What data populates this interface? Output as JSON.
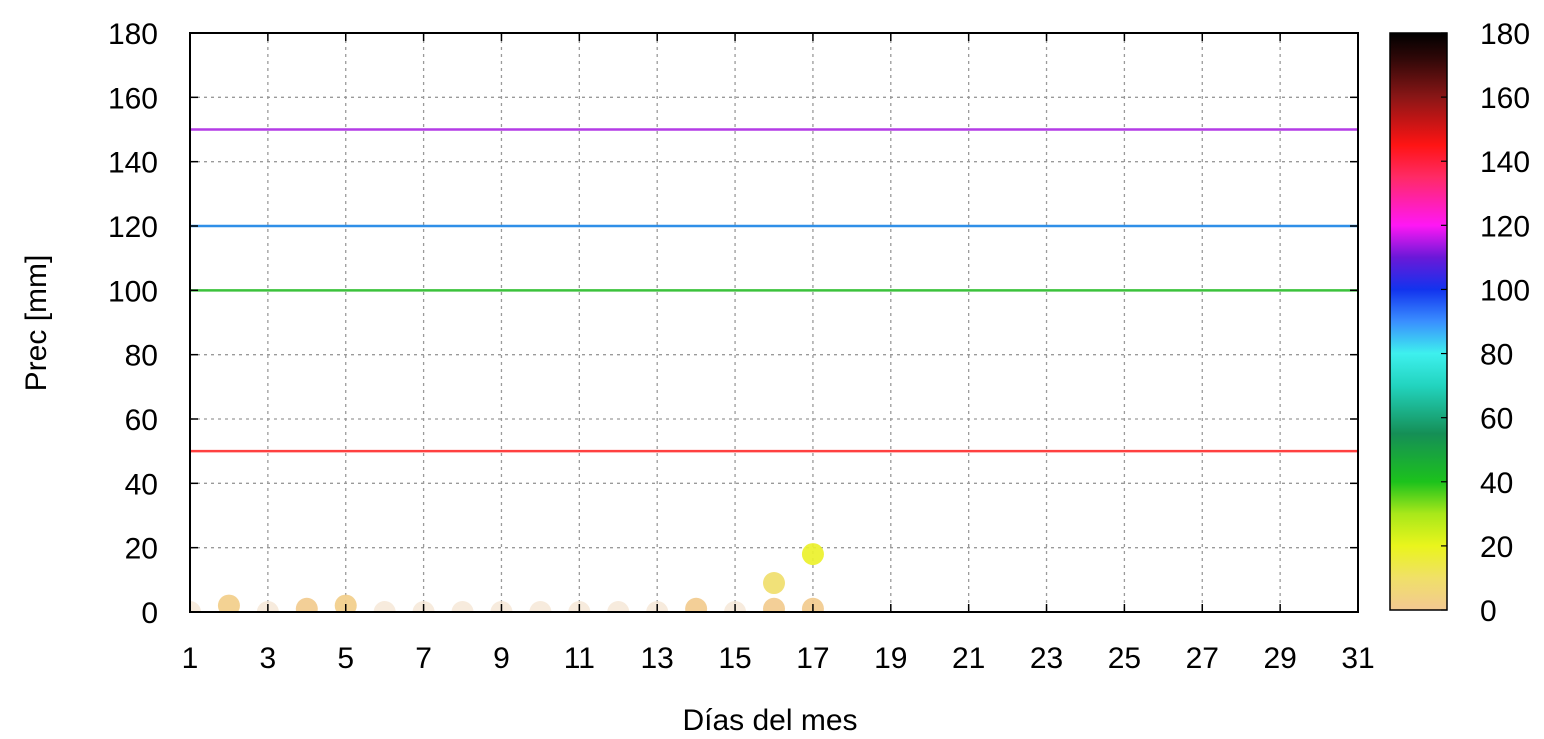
{
  "chart_data": {
    "type": "scatter",
    "xlabel": "Días del mes",
    "ylabel": "Prec [mm]",
    "xlim": [
      1,
      31
    ],
    "ylim": [
      0,
      180
    ],
    "x_ticks": [
      1,
      3,
      5,
      7,
      9,
      11,
      13,
      15,
      17,
      19,
      21,
      23,
      25,
      27,
      29,
      31
    ],
    "y_ticks": [
      0,
      20,
      40,
      60,
      80,
      100,
      120,
      140,
      160,
      180
    ],
    "grid": true,
    "thresholds": [
      {
        "value": 50,
        "color": "#ff4040"
      },
      {
        "value": 100,
        "color": "#3cc23c"
      },
      {
        "value": 120,
        "color": "#2f8fe8"
      },
      {
        "value": 150,
        "color": "#b43ce6"
      }
    ],
    "points": [
      {
        "x": 1,
        "y": 0
      },
      {
        "x": 2,
        "y": 2
      },
      {
        "x": 3,
        "y": 0
      },
      {
        "x": 4,
        "y": 1
      },
      {
        "x": 5,
        "y": 2
      },
      {
        "x": 6,
        "y": 0
      },
      {
        "x": 7,
        "y": 0
      },
      {
        "x": 8,
        "y": 0
      },
      {
        "x": 9,
        "y": 0
      },
      {
        "x": 10,
        "y": 0
      },
      {
        "x": 11,
        "y": 0
      },
      {
        "x": 12,
        "y": 0
      },
      {
        "x": 13,
        "y": 0
      },
      {
        "x": 14,
        "y": 1
      },
      {
        "x": 15,
        "y": 0
      },
      {
        "x": 16,
        "y": 9
      },
      {
        "x": 16,
        "y": 1
      },
      {
        "x": 17,
        "y": 18
      },
      {
        "x": 17,
        "y": 1
      }
    ],
    "colorbar": {
      "range": [
        0,
        180
      ],
      "ticks": [
        0,
        20,
        40,
        60,
        80,
        100,
        120,
        140,
        160,
        180
      ],
      "stops": [
        {
          "v": 0,
          "color": "#f2c992"
        },
        {
          "v": 10,
          "color": "#f0e068"
        },
        {
          "v": 20,
          "color": "#eaf51c"
        },
        {
          "v": 30,
          "color": "#a9e81a"
        },
        {
          "v": 40,
          "color": "#1cc21c"
        },
        {
          "v": 55,
          "color": "#158f56"
        },
        {
          "v": 70,
          "color": "#22d4bf"
        },
        {
          "v": 80,
          "color": "#3ef0ee"
        },
        {
          "v": 90,
          "color": "#3a8fff"
        },
        {
          "v": 100,
          "color": "#1233ee"
        },
        {
          "v": 110,
          "color": "#6a18d8"
        },
        {
          "v": 120,
          "color": "#ff17f5"
        },
        {
          "v": 135,
          "color": "#ff2a66"
        },
        {
          "v": 145,
          "color": "#ff1414"
        },
        {
          "v": 160,
          "color": "#8a1616"
        },
        {
          "v": 172,
          "color": "#300808"
        },
        {
          "v": 180,
          "color": "#000000"
        }
      ]
    }
  }
}
